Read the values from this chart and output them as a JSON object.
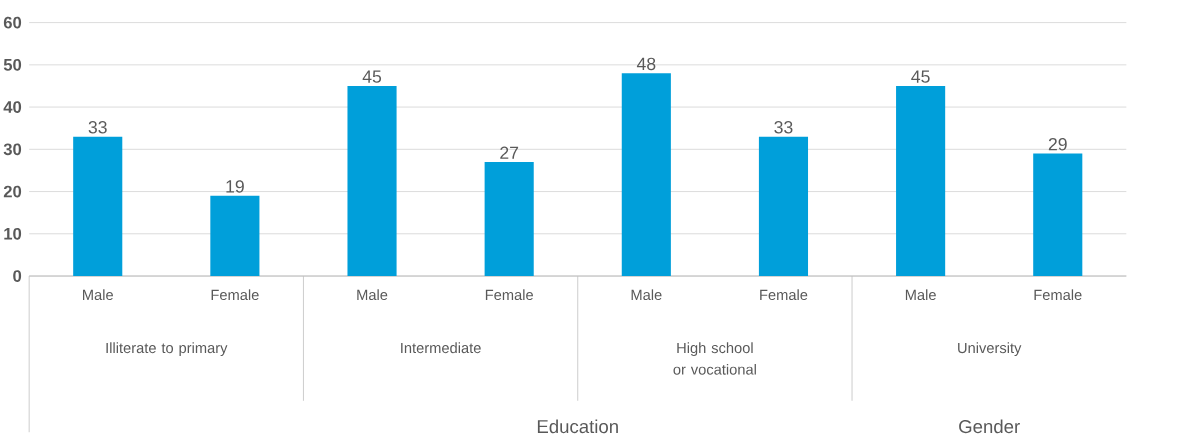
{
  "chart_data": {
    "type": "bar",
    "categories": [
      "Male",
      "Female",
      "Male",
      "Female",
      "Male",
      "Female",
      "Male",
      "Female"
    ],
    "values": [
      33,
      19,
      45,
      27,
      48,
      33,
      45,
      29
    ],
    "color": "#009fda",
    "ylim": [
      0,
      60
    ],
    "yticks": [
      0,
      10,
      20,
      30,
      40,
      50,
      60
    ],
    "grid": "y",
    "data_labels": true,
    "annotations": [
      "Illiterate to primary",
      "Intermediate",
      "High school or vocational",
      "University",
      "Education",
      "Gender"
    ]
  }
}
